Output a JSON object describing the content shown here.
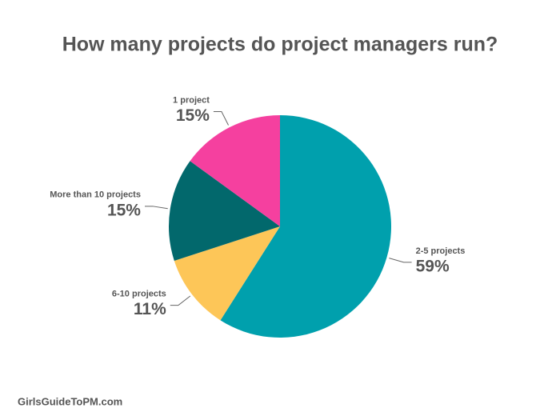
{
  "chart_data": {
    "type": "pie",
    "title": "How many projects do project managers run?",
    "categories": [
      "2-5 projects",
      "6-10 projects",
      "More than 10 projects",
      "1 project"
    ],
    "values": [
      59,
      11,
      15,
      15
    ],
    "value_labels": [
      "59%",
      "11%",
      "15%",
      "15%"
    ],
    "colors": [
      "#00a0ad",
      "#fdc658",
      "#02686c",
      "#f5409f"
    ],
    "footer": "GirlsGuideToPM.com"
  }
}
